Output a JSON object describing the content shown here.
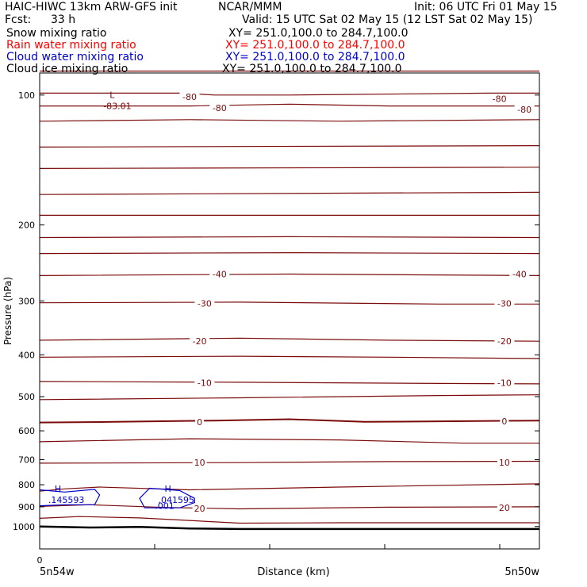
{
  "header": {
    "title_left": "HAIC-HIWC 13km ARW-GFS init",
    "org": "NCAR/MMM",
    "init": "Init: 06 UTC Fri 01 May 15",
    "fcst_label": "Fcst:",
    "fcst_value": "33 h",
    "valid": "Valid: 15 UTC Sat 02 May 15 (12 LST Sat 02 May 15)",
    "fields": [
      {
        "name": "Snow mixing ratio",
        "xy": "XY= 251.0,100.0 to 284.7,100.0",
        "color": "#000000"
      },
      {
        "name": "Rain water mixing ratio",
        "xy": "XY= 251.0,100.0 to 284.7,100.0",
        "color": "#ff0000"
      },
      {
        "name": "Cloud water mixing ratio",
        "xy": "XY= 251.0,100.0 to 284.7,100.0",
        "color": "#0000cc"
      },
      {
        "name": "Cloud ice mixing ratio",
        "xy": "XY= 251.0,100.0 to 284.7,100.0",
        "color": "#000000"
      }
    ]
  },
  "chart_data": {
    "type": "line",
    "title": "",
    "xlabel": "Distance (km)",
    "ylabel": "Pressure (hPa)",
    "x_start_label": "5n54w",
    "x_end_label": "5n50w",
    "x_tick_labels": [
      "0"
    ],
    "yscale": "log",
    "ylim": [
      1050,
      82
    ],
    "y_ticks": [
      100,
      200,
      300,
      400,
      500,
      600,
      700,
      800,
      900,
      1000
    ],
    "colors": {
      "temperature": "#7b0b0b",
      "cloud_water": "#0000cc",
      "surface": "#000000"
    },
    "isotherm_labels": [
      {
        "text": "-80",
        "x": 0.3,
        "p": 101
      },
      {
        "text": "-80",
        "x": 0.36,
        "p": 107
      },
      {
        "text": "-80",
        "x": 0.92,
        "p": 102
      },
      {
        "text": "-80",
        "x": 0.97,
        "p": 108
      },
      {
        "text": "-40",
        "x": 0.36,
        "p": 260
      },
      {
        "text": "-40",
        "x": 0.96,
        "p": 260
      },
      {
        "text": "-30",
        "x": 0.33,
        "p": 304
      },
      {
        "text": "-30",
        "x": 0.93,
        "p": 304
      },
      {
        "text": "-20",
        "x": 0.32,
        "p": 372
      },
      {
        "text": "-20",
        "x": 0.93,
        "p": 372
      },
      {
        "text": "-10",
        "x": 0.33,
        "p": 464
      },
      {
        "text": "-10",
        "x": 0.93,
        "p": 464
      },
      {
        "text": "0",
        "x": 0.32,
        "p": 573
      },
      {
        "text": "0",
        "x": 0.93,
        "p": 570
      },
      {
        "text": "10",
        "x": 0.32,
        "p": 711
      },
      {
        "text": "10",
        "x": 0.93,
        "p": 711
      },
      {
        "text": "20",
        "x": 0.32,
        "p": 908
      },
      {
        "text": "20",
        "x": 0.93,
        "p": 904
      }
    ],
    "extrema": [
      {
        "mark": "L",
        "value": "-83.01",
        "x": 0.14,
        "p": 105,
        "field": "temperature"
      },
      {
        "mark": "H",
        "value": ".145593",
        "x": 0.03,
        "p": 860,
        "field": "cloud_water"
      },
      {
        "mark": "H",
        "value": ".041595",
        "x": 0.25,
        "p": 860,
        "field": "cloud_water"
      }
    ],
    "cloud_water_contour_label": {
      "text": ".001",
      "x": 0.25,
      "p": 895
    },
    "series": [
      {
        "field": "temperature",
        "x": [
          0,
          1
        ],
        "y": [
          88,
          88
        ]
      },
      {
        "field": "temperature",
        "x": [
          0,
          0.28,
          0.35,
          0.5,
          0.9,
          1
        ],
        "y": [
          99,
          99,
          100,
          100,
          99,
          99
        ]
      },
      {
        "field": "temperature",
        "x": [
          0,
          0.3,
          0.5,
          0.7,
          1
        ],
        "y": [
          106,
          106,
          105,
          106,
          106
        ]
      },
      {
        "field": "temperature",
        "x": [
          0,
          0.3,
          0.6,
          1
        ],
        "y": [
          115,
          114,
          115,
          114
        ]
      },
      {
        "field": "temperature",
        "x": [
          0,
          1
        ],
        "y": [
          132,
          131
        ]
      },
      {
        "field": "temperature",
        "x": [
          0,
          1
        ],
        "y": [
          148,
          147
        ]
      },
      {
        "field": "temperature",
        "x": [
          0,
          1
        ],
        "y": [
          170,
          168
        ]
      },
      {
        "field": "temperature",
        "x": [
          0,
          1
        ],
        "y": [
          190,
          190
        ]
      },
      {
        "field": "temperature",
        "x": [
          0,
          0.5,
          1
        ],
        "y": [
          214,
          213,
          214
        ]
      },
      {
        "field": "temperature",
        "x": [
          0,
          0.5,
          1
        ],
        "y": [
          233,
          232,
          233
        ]
      },
      {
        "field": "temperature",
        "x": [
          0,
          0.5,
          1
        ],
        "y": [
          262,
          260,
          262
        ]
      },
      {
        "field": "temperature",
        "x": [
          0,
          0.4,
          0.8,
          1
        ],
        "y": [
          303,
          302,
          305,
          305
        ]
      },
      {
        "field": "temperature",
        "x": [
          0,
          0.4,
          0.7,
          1
        ],
        "y": [
          370,
          366,
          370,
          372
        ]
      },
      {
        "field": "temperature",
        "x": [
          0,
          0.4,
          0.7,
          1
        ],
        "y": [
          405,
          403,
          405,
          408
        ]
      },
      {
        "field": "temperature",
        "x": [
          0,
          0.4,
          0.8,
          1
        ],
        "y": [
          461,
          463,
          466,
          467
        ]
      },
      {
        "field": "temperature",
        "x": [
          0,
          0.4,
          0.8,
          1
        ],
        "y": [
          508,
          503,
          497,
          495
        ]
      },
      {
        "field": "temperature",
        "x": [
          0,
          0.15,
          0.35,
          0.5,
          0.65,
          1
        ],
        "y": [
          574,
          572,
          568,
          564,
          572,
          568
        ],
        "bold": true
      },
      {
        "field": "temperature",
        "x": [
          0,
          0.3,
          0.6,
          0.85,
          1
        ],
        "y": [
          636,
          626,
          630,
          641,
          641
        ]
      },
      {
        "field": "temperature",
        "x": [
          0,
          0.4,
          0.7,
          1
        ],
        "y": [
          713,
          711,
          707,
          706
        ]
      },
      {
        "field": "temperature",
        "x": [
          0,
          0.05,
          0.12,
          0.3,
          0.6,
          1
        ],
        "y": [
          828,
          818,
          810,
          822,
          810,
          796
        ]
      },
      {
        "field": "temperature",
        "x": [
          0,
          0.1,
          0.25,
          0.4,
          0.7,
          1
        ],
        "y": [
          898,
          890,
          903,
          910,
          902,
          900
        ]
      },
      {
        "field": "temperature",
        "x": [
          0,
          0.08,
          0.2,
          0.4,
          0.6,
          1
        ],
        "y": [
          957,
          948,
          955,
          982,
          980,
          980
        ]
      },
      {
        "field": "surface",
        "x": [
          0,
          0.1,
          0.2,
          0.3,
          0.4,
          1
        ],
        "y": [
          1000,
          1005,
          1002,
          1010,
          1013,
          1013
        ]
      },
      {
        "field": "cloud_water",
        "x": [
          0,
          0.05,
          0.11,
          0.12,
          0.11,
          0.05,
          0
        ],
        "y": [
          822,
          832,
          820,
          845,
          890,
          890,
          895
        ],
        "closed": false
      },
      {
        "field": "cloud_water",
        "x": [
          0.22,
          0.28,
          0.31,
          0.31,
          0.28,
          0.21,
          0.2,
          0.22
        ],
        "y": [
          815,
          825,
          860,
          880,
          905,
          905,
          860,
          815
        ],
        "closed": true
      }
    ]
  }
}
